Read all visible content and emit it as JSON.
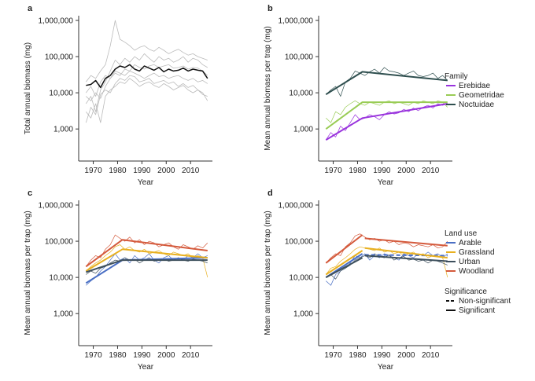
{
  "chart_data": [
    {
      "type": "line",
      "panel_label": "a",
      "ylabel": "Total annual biomass (mg)",
      "xlabel": "Year",
      "log_y": true,
      "xlim": [
        1964,
        2019
      ],
      "xticks": [
        1970,
        1980,
        1990,
        2000,
        2010
      ],
      "ylim": [
        130,
        1350000
      ],
      "yticks": [
        {
          "value": 1000,
          "label": "1,000"
        },
        {
          "value": 10000,
          "label": "10,000"
        },
        {
          "value": 100000,
          "label": "100,000"
        },
        {
          "value": 1000000,
          "label": "1,000,000"
        }
      ],
      "x": [
        1967,
        1969,
        1971,
        1973,
        1975,
        1977,
        1979,
        1981,
        1983,
        1985,
        1987,
        1989,
        1991,
        1993,
        1995,
        1997,
        1999,
        2001,
        2003,
        2005,
        2007,
        2009,
        2011,
        2013,
        2015,
        2017
      ],
      "series": [
        {
          "color": "#bbbbbb",
          "values": [
            5000,
            8000,
            3000,
            12000,
            20000,
            40000,
            80000,
            60000,
            90000,
            70000,
            100000,
            80000,
            120000,
            90000,
            70000,
            100000,
            80000,
            90000,
            70000,
            80000,
            100000,
            70000,
            90000,
            80000,
            60000,
            50000
          ]
        },
        {
          "color": "#bbbbbb",
          "values": [
            10000,
            15000,
            8000,
            20000,
            30000,
            25000,
            40000,
            35000,
            30000,
            40000,
            35000,
            30000,
            25000,
            30000,
            35000,
            28000,
            30000,
            25000,
            28000,
            30000,
            25000,
            22000,
            25000,
            20000,
            22000,
            18000
          ]
        },
        {
          "color": "#bbbbbb",
          "values": [
            3000,
            2000,
            5000,
            1500,
            8000,
            12000,
            15000,
            20000,
            18000,
            25000,
            20000,
            15000,
            18000,
            20000,
            16000,
            14000,
            18000,
            15000,
            12000,
            14000,
            16000,
            12000,
            10000,
            12000,
            9000,
            8000
          ]
        },
        {
          "color": "#bbbbbb",
          "values": [
            20000,
            30000,
            25000,
            40000,
            60000,
            200000,
            1000000,
            300000,
            250000,
            200000,
            150000,
            180000,
            200000,
            160000,
            140000,
            180000,
            150000,
            120000,
            140000,
            160000,
            130000,
            110000,
            120000,
            100000,
            90000,
            80000
          ]
        },
        {
          "color": "#bbbbbb",
          "values": [
            8000,
            6000,
            10000,
            7000,
            15000,
            25000,
            35000,
            30000,
            45000,
            40000,
            60000,
            50000,
            45000,
            55000,
            60000,
            50000,
            55000,
            60000,
            48000,
            50000,
            55000,
            45000,
            50000,
            48000,
            40000,
            30000
          ]
        },
        {
          "color": "#bbbbbb",
          "values": [
            1500,
            4000,
            2500,
            9000,
            12000,
            10000,
            18000,
            25000,
            22000,
            30000,
            28000,
            20000,
            22000,
            25000,
            18000,
            20000,
            22000,
            18000,
            20000,
            15000,
            18000,
            14000,
            16000,
            12000,
            10000,
            6000
          ]
        },
        {
          "color": "#111111",
          "values": [
            16000,
            17000,
            22000,
            14000,
            25000,
            30000,
            45000,
            55000,
            50000,
            60000,
            45000,
            40000,
            55000,
            48000,
            42000,
            50000,
            38000,
            45000,
            40000,
            42000,
            48000,
            40000,
            45000,
            42000,
            40000,
            25000
          ]
        }
      ]
    },
    {
      "type": "line",
      "panel_label": "b",
      "ylabel": "Mean annual biomass per trap (mg)",
      "xlabel": "Year",
      "log_y": true,
      "xlim": [
        1964,
        2019
      ],
      "xticks": [
        1970,
        1980,
        1990,
        2000,
        2010
      ],
      "ylim": [
        130,
        1350000
      ],
      "yticks": [
        {
          "value": 1000,
          "label": "1,000"
        },
        {
          "value": 10000,
          "label": "10,000"
        },
        {
          "value": 100000,
          "label": "100,000"
        },
        {
          "value": 1000000,
          "label": "1,000,000"
        }
      ],
      "legend_title": "Family",
      "x": [
        1967,
        1969,
        1971,
        1973,
        1975,
        1977,
        1979,
        1981,
        1983,
        1985,
        1987,
        1989,
        1991,
        1993,
        1995,
        1997,
        1999,
        2001,
        2003,
        2005,
        2007,
        2009,
        2011,
        2013,
        2015,
        2017
      ],
      "series": [
        {
          "name": "Erebidae",
          "color": "#9933dd",
          "values": [
            500,
            800,
            600,
            1200,
            900,
            1500,
            2500,
            1800,
            2000,
            2500,
            2200,
            1800,
            2500,
            3000,
            2600,
            2800,
            3500,
            3000,
            3800,
            3200,
            4000,
            4500,
            3800,
            5000,
            4500,
            5000
          ],
          "fit": [
            {
              "x": [
                1967,
                1982,
                2017
              ],
              "values": [
                500,
                2000,
                5000
              ],
              "dash": false
            }
          ]
        },
        {
          "name": "Geometridae",
          "color": "#99cc55",
          "values": [
            2000,
            1500,
            3000,
            2500,
            4000,
            5000,
            6000,
            5000,
            4500,
            5500,
            5000,
            4500,
            5500,
            6000,
            5000,
            5500,
            5000,
            4500,
            5500,
            5000,
            6000,
            5500,
            5000,
            6000,
            5500,
            4000
          ],
          "fit": [
            {
              "x": [
                1967,
                1982,
                2017
              ],
              "values": [
                1000,
                5500,
                5500
              ],
              "dash": false
            }
          ]
        },
        {
          "name": "Noctuidae",
          "color": "#2f4f4f",
          "values": [
            9000,
            12000,
            15000,
            8000,
            20000,
            25000,
            40000,
            35000,
            30000,
            38000,
            45000,
            35000,
            50000,
            40000,
            38000,
            35000,
            30000,
            35000,
            40000,
            30000,
            28000,
            30000,
            35000,
            25000,
            30000,
            22000
          ],
          "fit": [
            {
              "x": [
                1967,
                1982,
                2017
              ],
              "values": [
                9000,
                38000,
                22000
              ],
              "dash": false
            }
          ]
        }
      ]
    },
    {
      "type": "line",
      "panel_label": "c",
      "ylabel": "Mean annual biomass per trap (mg)",
      "xlabel": "Year",
      "log_y": true,
      "xlim": [
        1964,
        2019
      ],
      "xticks": [
        1970,
        1980,
        1990,
        2000,
        2010
      ],
      "ylim": [
        130,
        1350000
      ],
      "yticks": [
        {
          "value": 1000,
          "label": "1,000"
        },
        {
          "value": 10000,
          "label": "10,000"
        },
        {
          "value": 100000,
          "label": "100,000"
        },
        {
          "value": 1000000,
          "label": "1,000,000"
        }
      ],
      "x": [
        1967,
        1969,
        1971,
        1973,
        1975,
        1977,
        1979,
        1981,
        1983,
        1985,
        1987,
        1989,
        1991,
        1993,
        1995,
        1997,
        1999,
        2001,
        2003,
        2005,
        2007,
        2009,
        2011,
        2013,
        2015,
        2017
      ],
      "series": [
        {
          "color": "#4a6fc4",
          "values": [
            6000,
            8000,
            10000,
            15000,
            20000,
            30000,
            45000,
            30000,
            35000,
            25000,
            40000,
            30000,
            35000,
            45000,
            30000,
            25000,
            35000,
            40000,
            30000,
            35000,
            30000,
            40000,
            35000,
            45000,
            35000,
            40000
          ],
          "fit": [
            {
              "x": [
                1967,
                1982,
                2017
              ],
              "values": [
                7000,
                30000,
                35000
              ],
              "dash": false
            }
          ]
        },
        {
          "color": "#e8b020",
          "values": [
            15000,
            20000,
            25000,
            30000,
            40000,
            50000,
            70000,
            80000,
            60000,
            70000,
            55000,
            50000,
            60000,
            45000,
            50000,
            55000,
            45000,
            40000,
            50000,
            45000,
            40000,
            45000,
            35000,
            40000,
            35000,
            10000
          ],
          "fit": [
            {
              "x": [
                1967,
                1982,
                2017
              ],
              "values": [
                15000,
                60000,
                35000
              ],
              "dash": false
            }
          ]
        },
        {
          "color": "#3d4f5c",
          "values": [
            12000,
            15000,
            13000,
            18000,
            20000,
            25000,
            30000,
            28000,
            35000,
            30000,
            32000,
            25000,
            30000,
            35000,
            28000,
            30000,
            32000,
            28000,
            30000,
            35000,
            30000,
            28000,
            32000,
            30000,
            28000,
            25000
          ],
          "fit": [
            {
              "x": [
                1967,
                1982,
                2017
              ],
              "values": [
                14000,
                30000,
                30000
              ],
              "dash": false
            }
          ]
        },
        {
          "color": "#d45a3c",
          "values": [
            20000,
            30000,
            40000,
            35000,
            60000,
            80000,
            150000,
            120000,
            100000,
            130000,
            90000,
            110000,
            80000,
            100000,
            90000,
            70000,
            80000,
            90000,
            70000,
            60000,
            80000,
            70000,
            60000,
            75000,
            65000,
            90000
          ],
          "fit": [
            {
              "x": [
                1967,
                1982,
                2017
              ],
              "values": [
                20000,
                110000,
                55000
              ],
              "dash": false
            }
          ]
        }
      ]
    },
    {
      "type": "line",
      "panel_label": "d",
      "ylabel": "Mean annual biomass per trap (mg)",
      "xlabel": "Year",
      "log_y": true,
      "xlim": [
        1964,
        2019
      ],
      "xticks": [
        1970,
        1980,
        1990,
        2000,
        2010
      ],
      "ylim": [
        130,
        1350000
      ],
      "yticks": [
        {
          "value": 1000,
          "label": "1,000"
        },
        {
          "value": 10000,
          "label": "10,000"
        },
        {
          "value": 100000,
          "label": "100,000"
        },
        {
          "value": 1000000,
          "label": "1,000,000"
        }
      ],
      "legend_title": "Land use",
      "significance_legend": {
        "title": "Significance",
        "entries": [
          {
            "label": "Non-significant",
            "dash": true
          },
          {
            "label": "Significant",
            "dash": false
          }
        ]
      },
      "x": [
        1967,
        1969,
        1971,
        1973,
        1975,
        1977,
        1979,
        1981,
        1983,
        1985,
        1987,
        1989,
        1991,
        1993,
        1995,
        1997,
        1999,
        2001,
        2003,
        2005,
        2007,
        2009,
        2011,
        2013,
        2015,
        2017
      ],
      "series": [
        {
          "name": "Arable",
          "color": "#4a6fc4",
          "values": [
            8000,
            6000,
            12000,
            15000,
            18000,
            25000,
            40000,
            35000,
            45000,
            30000,
            40000,
            35000,
            45000,
            40000,
            35000,
            30000,
            45000,
            40000,
            35000,
            45000,
            40000,
            50000,
            40000,
            45000,
            35000,
            45000
          ],
          "fit": [
            {
              "x": [
                1967,
                1982
              ],
              "values": [
                10000,
                45000
              ],
              "dash": false
            },
            {
              "x": [
                1983,
                2017
              ],
              "values": [
                42000,
                40000
              ],
              "dash": true
            }
          ]
        },
        {
          "name": "Grassland",
          "color": "#e8b020",
          "values": [
            12000,
            18000,
            20000,
            28000,
            35000,
            45000,
            60000,
            70000,
            65000,
            60000,
            55000,
            65000,
            50000,
            55000,
            45000,
            50000,
            40000,
            45000,
            50000,
            40000,
            45000,
            35000,
            40000,
            38000,
            35000,
            10000
          ],
          "fit": [
            {
              "x": [
                1967,
                1982
              ],
              "values": [
                12000,
                55000
              ],
              "dash": false
            },
            {
              "x": [
                1983,
                2017
              ],
              "values": [
                65000,
                35000
              ],
              "dash": false
            }
          ]
        },
        {
          "name": "Urban",
          "color": "#3d4f5c",
          "values": [
            10000,
            12000,
            9000,
            15000,
            18000,
            22000,
            30000,
            35000,
            40000,
            35000,
            45000,
            38000,
            35000,
            42000,
            30000,
            35000,
            38000,
            30000,
            32000,
            28000,
            30000,
            25000,
            30000,
            28000,
            25000,
            22000
          ],
          "fit": [
            {
              "x": [
                1967,
                1982
              ],
              "values": [
                10000,
                35000
              ],
              "dash": false
            },
            {
              "x": [
                1983,
                2017
              ],
              "values": [
                40000,
                28000
              ],
              "dash": false
            }
          ]
        },
        {
          "name": "Woodland",
          "color": "#d45a3c",
          "values": [
            25000,
            35000,
            45000,
            40000,
            70000,
            90000,
            140000,
            160000,
            130000,
            110000,
            120000,
            100000,
            110000,
            90000,
            100000,
            80000,
            90000,
            85000,
            70000,
            80000,
            75000,
            70000,
            80000,
            65000,
            70000,
            100000
          ],
          "fit": [
            {
              "x": [
                1967,
                1982
              ],
              "values": [
                25000,
                150000
              ],
              "dash": false
            },
            {
              "x": [
                1983,
                2017
              ],
              "values": [
                120000,
                75000
              ],
              "dash": false
            }
          ]
        }
      ]
    }
  ]
}
